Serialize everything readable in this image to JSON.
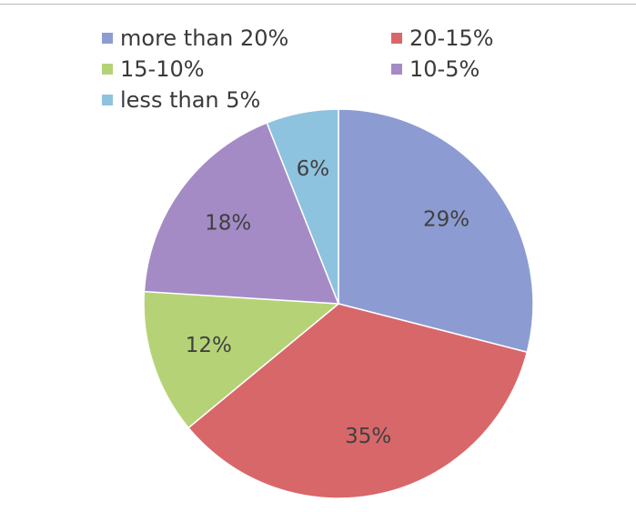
{
  "chart_data": {
    "type": "pie",
    "title": "",
    "legend_position": "top",
    "slices": [
      {
        "label": "more than 20%",
        "value": 29,
        "display": "29%",
        "color": "#8c9bd1"
      },
      {
        "label": "20-15%",
        "value": 35,
        "display": "35%",
        "color": "#d8676a"
      },
      {
        "label": "15-10%",
        "value": 12,
        "display": "12%",
        "color": "#b5d376"
      },
      {
        "label": "10-5%",
        "value": 18,
        "display": "18%",
        "color": "#a48bc6"
      },
      {
        "label": "less than 5%",
        "value": 6,
        "display": "6%",
        "color": "#8ec3df"
      }
    ]
  }
}
